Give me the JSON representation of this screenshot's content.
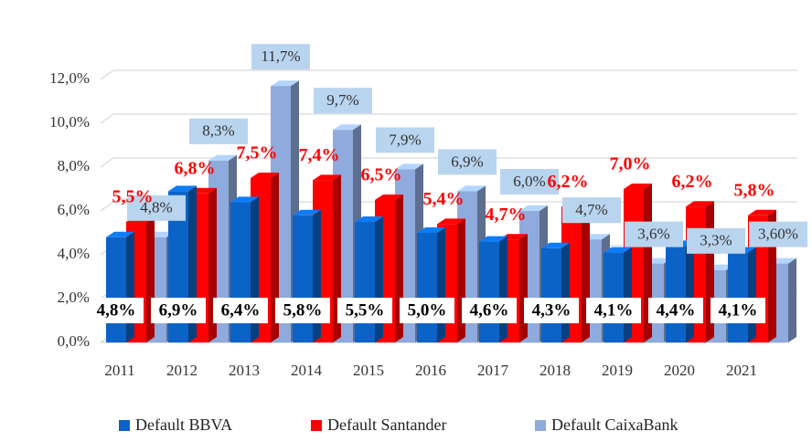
{
  "chart_data": {
    "type": "bar3d",
    "categories": [
      "2011",
      "2012",
      "2013",
      "2014",
      "2015",
      "2016",
      "2017",
      "2018",
      "2019",
      "2020",
      "2021"
    ],
    "series": [
      {
        "name": "Default BBVA",
        "color": "#0b63c7",
        "values": [
          4.8,
          6.9,
          6.4,
          5.8,
          5.5,
          5.0,
          4.6,
          4.3,
          4.1,
          4.4,
          4.1
        ],
        "value_labels": [
          "4,8%",
          "6,9%",
          "6,4%",
          "5,8%",
          "5,5%",
          "5,0%",
          "4,6%",
          "4,3%",
          "4,1%",
          "4,4%",
          "4,1%"
        ]
      },
      {
        "name": "Default Santander",
        "color": "#ff0000",
        "values": [
          5.5,
          6.8,
          7.5,
          7.4,
          6.5,
          5.4,
          4.7,
          6.2,
          7.0,
          6.2,
          5.8
        ],
        "value_labels": [
          "5,5%",
          "6,8%",
          "7,5%",
          "7,4%",
          "6,5%",
          "5,4%",
          "4,7%",
          "6,2%",
          "7,0%",
          "6,2%",
          "5,8%"
        ]
      },
      {
        "name": "Default CaixaBank",
        "color": "#8faadc",
        "values": [
          4.8,
          8.3,
          11.7,
          9.7,
          7.9,
          6.9,
          6.0,
          4.7,
          3.6,
          3.3,
          3.6
        ],
        "value_labels": [
          "4,8%",
          "8,3%",
          "11,7%",
          "9,7%",
          "7,9%",
          "6,9%",
          "6,0%",
          "4,7%",
          "3,6%",
          "3,3%",
          "3,60%"
        ]
      }
    ],
    "ylim": [
      0,
      14
    ],
    "yticks": [
      {
        "value": 0,
        "label": "0,0%"
      },
      {
        "value": 2,
        "label": "2,0%"
      },
      {
        "value": 4,
        "label": "4,0%"
      },
      {
        "value": 6,
        "label": "6,0%"
      },
      {
        "value": 8,
        "label": "8,0%"
      },
      {
        "value": 10,
        "label": "10,0%"
      },
      {
        "value": 12,
        "label": "12,0%"
      }
    ],
    "grid": true,
    "legend": "bottom"
  }
}
